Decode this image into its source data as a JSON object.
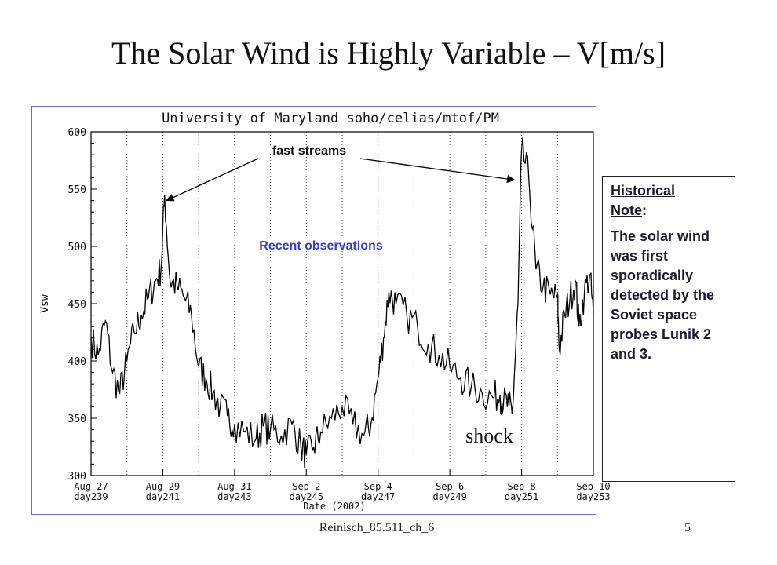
{
  "slide": {
    "title": "The Solar Wind is Highly Variable – V[m/s]",
    "footer": "Reinisch_85.511_ch_6",
    "page_number": "5"
  },
  "note": {
    "heading_line1": "Historical",
    "heading_word": "Note",
    "heading_colon": ":",
    "body": "The solar wind was first sporadically detected by the Soviet space probes Lunik 2 and 3."
  },
  "chart_data": {
    "type": "line",
    "title": "University  of  Maryland    soho/celias/mtof/PM",
    "xlabel": "Date (2002)",
    "ylabel": "Vsw",
    "ylim": [
      300,
      600
    ],
    "xlim": [
      239,
      253
    ],
    "yticks": [
      300,
      350,
      400,
      450,
      500,
      550,
      600
    ],
    "grid": "vertical dotted lines at each day",
    "x_ticks": [
      {
        "day": 239,
        "date": "Aug 27",
        "doy": "day239"
      },
      {
        "day": 241,
        "date": "Aug 29",
        "doy": "day241"
      },
      {
        "day": 243,
        "date": "Aug 31",
        "doy": "day243"
      },
      {
        "day": 245,
        "date": "Sep 2",
        "doy": "day245"
      },
      {
        "day": 247,
        "date": "Sep 4",
        "doy": "day247"
      },
      {
        "day": 249,
        "date": "Sep 6",
        "doy": "day249"
      },
      {
        "day": 251,
        "date": "Sep 8",
        "doy": "day251"
      },
      {
        "day": 253,
        "date": "Sep 10",
        "doy": "day253"
      }
    ],
    "series": [
      {
        "x": [
          239.0,
          239.2,
          239.4,
          239.6,
          239.8,
          240.0,
          240.2,
          240.4,
          240.6,
          240.8,
          240.95,
          241.05,
          241.2,
          241.4,
          241.6,
          241.8,
          242.0,
          242.2,
          242.4,
          242.6,
          242.8,
          243.0,
          243.3,
          243.6,
          243.8,
          244.0,
          244.3,
          244.6,
          244.85,
          245.0,
          245.2,
          245.4,
          245.7,
          246.0,
          246.3,
          246.6,
          246.8,
          247.0,
          247.15,
          247.3,
          247.5,
          247.8,
          248.1,
          248.4,
          248.7,
          249.0,
          249.3,
          249.6,
          249.9,
          250.2,
          250.4,
          250.5,
          250.65,
          250.75,
          250.9,
          251.0,
          251.2,
          251.4,
          251.6,
          251.8,
          252.0,
          252.05,
          252.2,
          252.35,
          252.5,
          252.6,
          252.75,
          252.9,
          253.0
        ],
        "y": [
          420,
          405,
          435,
          390,
          372,
          400,
          425,
          440,
          455,
          470,
          480,
          545,
          470,
          465,
          455,
          440,
          395,
          385,
          372,
          360,
          352,
          345,
          338,
          332,
          343,
          340,
          335,
          345,
          325,
          318,
          325,
          338,
          350,
          360,
          345,
          335,
          345,
          385,
          420,
          460,
          450,
          440,
          430,
          415,
          405,
          395,
          385,
          378,
          372,
          368,
          370,
          365,
          360,
          358,
          450,
          585,
          560,
          480,
          465,
          458,
          455,
          410,
          440,
          455,
          470,
          430,
          460,
          475,
          440
        ]
      }
    ],
    "annotations": {
      "fast_streams": "fast streams",
      "recent": "Recent observations",
      "shock": "shock"
    },
    "colors": {
      "line": "#000000",
      "fast_streams_text": "#111111",
      "recent_text": "#3a3fc4",
      "frame": "#6a6fc0"
    }
  }
}
